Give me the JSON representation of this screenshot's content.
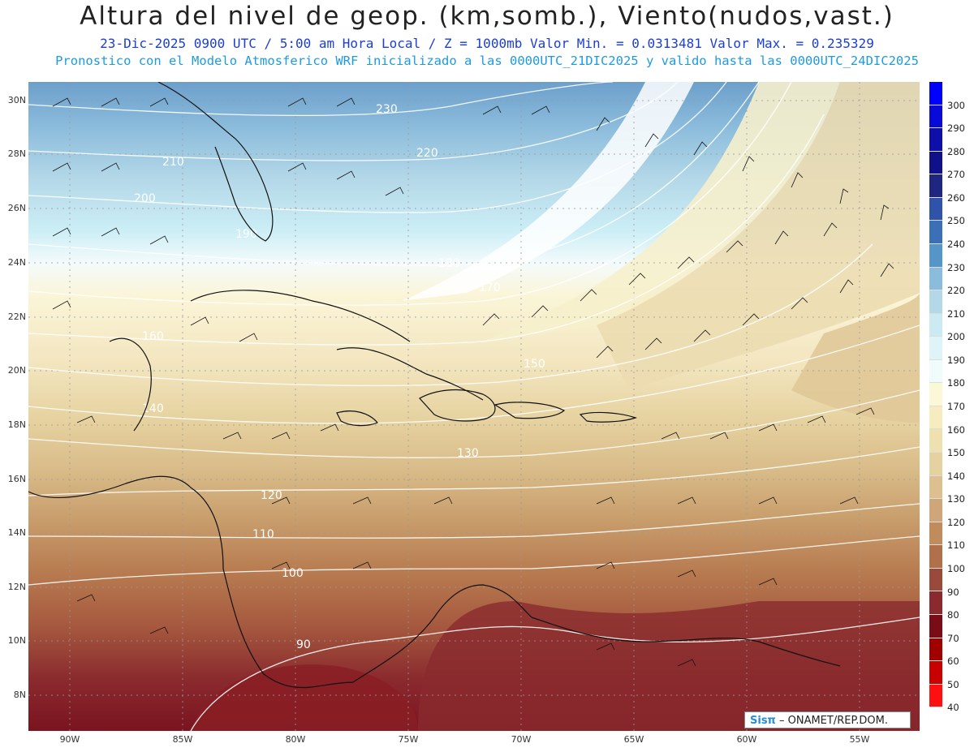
{
  "header": {
    "title": "Altura del nivel de geop. (km,somb.), Viento(nudos,vast.)",
    "subtitle1": "23-Dic-2025  0900 UTC / 5:00 am Hora Local / Z = 1000mb  Valor Min. = 0.0313481  Valor Max. = 0.235329",
    "subtitle2": "Pronostico con el Modelo Atmosferico WRF inicializado a las 0000UTC_21DIC2025 y valido hasta las  0000UTC_24DIC2025"
  },
  "axes": {
    "lat_labels": [
      "30N",
      "28N",
      "26N",
      "24N",
      "22N",
      "20N",
      "18N",
      "16N",
      "14N",
      "12N",
      "10N",
      "8N"
    ],
    "lon_labels": [
      "90W",
      "85W",
      "80W",
      "75W",
      "70W",
      "65W",
      "60W",
      "55W"
    ]
  },
  "colorbar": {
    "labels": [
      "300",
      "290",
      "280",
      "270",
      "260",
      "250",
      "240",
      "230",
      "220",
      "210",
      "200",
      "190",
      "180",
      "170",
      "160",
      "150",
      "140",
      "130",
      "120",
      "110",
      "100",
      "90",
      "80",
      "70",
      "60",
      "50",
      "40"
    ],
    "colors": [
      "#0000ff",
      "#0a0ad8",
      "#0e0ea8",
      "#10108a",
      "#1e2680",
      "#2f53a8",
      "#3c70b6",
      "#5596c8",
      "#8cbcdc",
      "#b4d8e8",
      "#cceaf2",
      "#dff4f8",
      "#f0fbfc",
      "#fbf8d8",
      "#f6ecc0",
      "#efe0b0",
      "#e6d2a0",
      "#dcc090",
      "#cea678",
      "#c08c5c",
      "#b0704a",
      "#9a4a3a",
      "#8a2a2e",
      "#7a0c18",
      "#a00000",
      "#c80000",
      "#ff1010"
    ]
  },
  "map": {
    "contour_labels": [
      "230",
      "220",
      "210",
      "200",
      "190",
      "180",
      "170",
      "160",
      "150",
      "140",
      "130",
      "120",
      "110",
      "100",
      "90"
    ]
  },
  "badge": {
    "brand": "Sisπ",
    "text": " – ONAMET/REP.DOM."
  }
}
